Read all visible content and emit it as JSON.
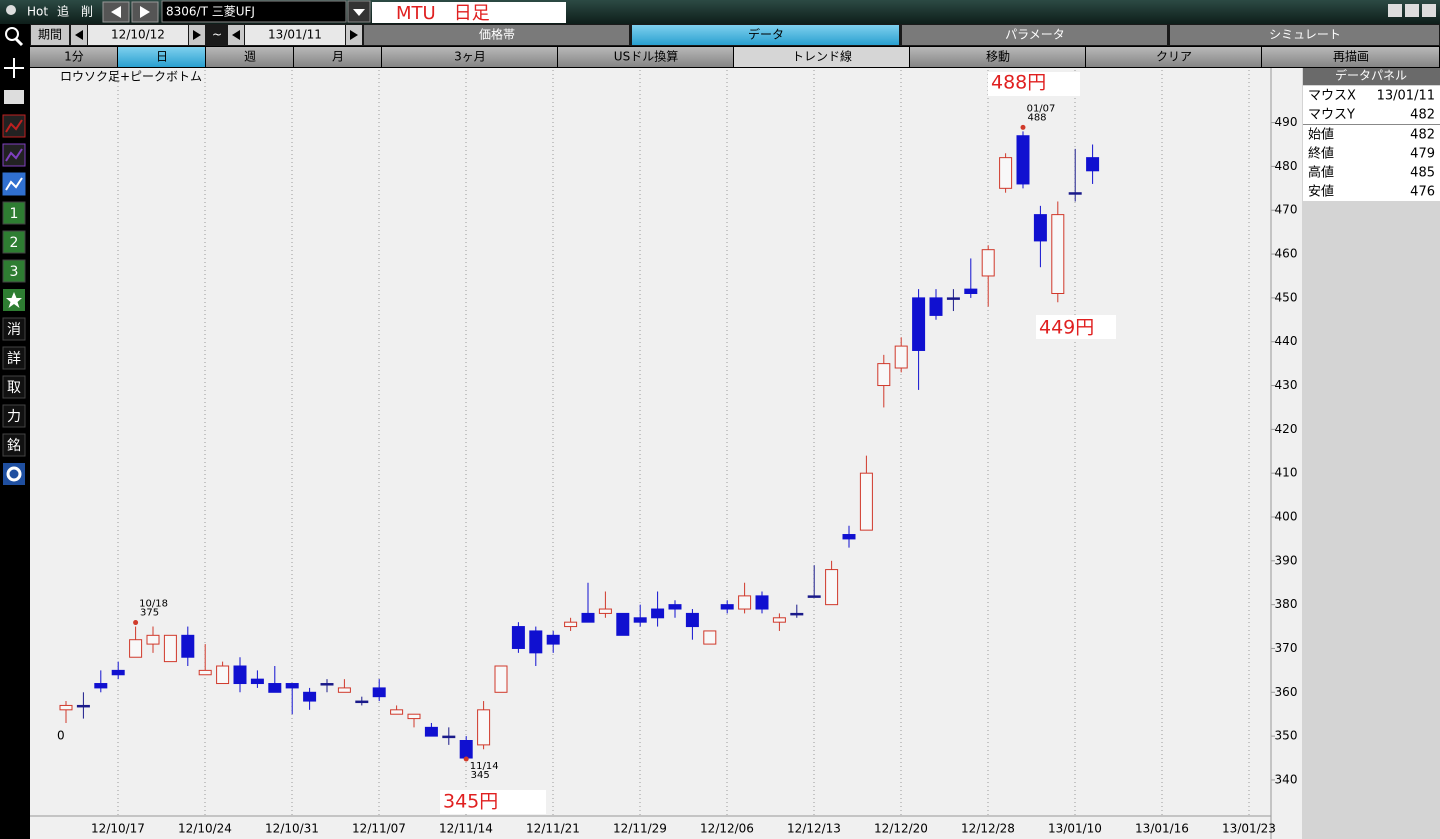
{
  "toolbar": {
    "hot": "Hot",
    "add": "追",
    "delete": "削",
    "symbol": "8306/T 三菱UFJ",
    "memo": "MTU　日足"
  },
  "period": {
    "label": "期間",
    "from": "12/10/12",
    "separator": "~",
    "to": "13/01/11"
  },
  "tabs": [
    "価格帯",
    "データ",
    "パラメータ",
    "シミュレート"
  ],
  "buttons": [
    "1分",
    "日",
    "週",
    "月",
    "3ヶ月",
    "USドル換算",
    "トレンド線",
    "移動",
    "クリア",
    "再描画"
  ],
  "sidebar": [
    "1",
    "2",
    "3",
    "消",
    "詳",
    "取",
    "力",
    "銘"
  ],
  "data_panel": {
    "title": "データパネル",
    "rows": [
      [
        "マウスX",
        "13/01/11"
      ],
      [
        "マウスY",
        482
      ],
      [
        "始値",
        482
      ],
      [
        "終値",
        479
      ],
      [
        "高値",
        485
      ],
      [
        "安値",
        476
      ]
    ]
  },
  "chart_data": {
    "type": "candlestick",
    "title": "ロウソク足+ピークボトム",
    "dates": [
      "12/10/12",
      "12/10/15",
      "12/10/16",
      "12/10/17",
      "12/10/18",
      "12/10/19",
      "12/10/22",
      "12/10/23",
      "12/10/24",
      "12/10/25",
      "12/10/26",
      "12/10/29",
      "12/10/30",
      "12/10/31",
      "12/11/01",
      "12/11/02",
      "12/11/05",
      "12/11/06",
      "12/11/07",
      "12/11/08",
      "12/11/09",
      "12/11/12",
      "12/11/13",
      "12/11/14",
      "12/11/15",
      "12/11/16",
      "12/11/19",
      "12/11/20",
      "12/11/21",
      "12/11/22",
      "12/11/26",
      "12/11/27",
      "12/11/28",
      "12/11/29",
      "12/11/30",
      "12/12/03",
      "12/12/04",
      "12/12/05",
      "12/12/06",
      "12/12/07",
      "12/12/10",
      "12/12/11",
      "12/12/12",
      "12/12/13",
      "12/12/14",
      "12/12/17",
      "12/12/18",
      "12/12/19",
      "12/12/20",
      "12/12/21",
      "12/12/25",
      "12/12/26",
      "12/12/27",
      "12/12/28",
      "13/01/04",
      "13/01/07",
      "13/01/08",
      "13/01/09",
      "13/01/10",
      "13/01/11"
    ],
    "open": [
      356,
      357,
      362,
      365,
      368,
      371,
      367,
      373,
      364,
      362,
      366,
      363,
      362,
      362,
      360,
      362,
      360,
      358,
      361,
      355,
      354,
      352,
      350,
      349,
      348,
      360,
      375,
      374,
      373,
      375,
      378,
      378,
      378,
      377,
      379,
      380,
      378,
      371,
      380,
      379,
      382,
      376,
      378,
      382,
      380,
      396,
      397,
      430,
      434,
      450,
      450,
      450,
      452,
      455,
      475,
      487,
      469,
      451,
      474,
      482
    ],
    "high": [
      358,
      360,
      365,
      367,
      375,
      375,
      373,
      375,
      371,
      367,
      368,
      365,
      366,
      362,
      361,
      363,
      363,
      359,
      363,
      357,
      355,
      353,
      352,
      350,
      358,
      366,
      376,
      375,
      374,
      377,
      385,
      383,
      378,
      380,
      383,
      381,
      379,
      374,
      381,
      385,
      383,
      378,
      380,
      389,
      390,
      398,
      414,
      437,
      441,
      452,
      452,
      452,
      459,
      462,
      483,
      488,
      471,
      472,
      484,
      485
    ],
    "low": [
      353,
      354,
      360,
      363,
      368,
      369,
      367,
      366,
      364,
      362,
      360,
      361,
      360,
      355,
      356,
      360,
      360,
      357,
      358,
      355,
      352,
      350,
      348,
      345,
      347,
      360,
      369,
      366,
      369,
      374,
      376,
      377,
      373,
      375,
      375,
      377,
      372,
      371,
      378,
      378,
      378,
      374,
      377,
      382,
      380,
      393,
      397,
      425,
      433,
      429,
      445,
      447,
      450,
      448,
      474,
      475,
      457,
      449,
      472,
      476
    ],
    "close": [
      357,
      357,
      361,
      364,
      372,
      373,
      373,
      368,
      365,
      366,
      362,
      362,
      360,
      361,
      358,
      362,
      361,
      358,
      359,
      356,
      355,
      350,
      350,
      345,
      356,
      366,
      370,
      369,
      371,
      376,
      376,
      379,
      373,
      376,
      377,
      379,
      375,
      374,
      379,
      382,
      379,
      377,
      378,
      382,
      388,
      395,
      410,
      435,
      439,
      438,
      446,
      450,
      451,
      461,
      482,
      476,
      463,
      469,
      474,
      479
    ],
    "up_color": "#d0382a",
    "down_color": "#1010d0",
    "ylim": [
      332,
      502
    ],
    "yticks": [
      340,
      350,
      360,
      370,
      380,
      390,
      400,
      410,
      420,
      430,
      440,
      450,
      460,
      470,
      480,
      490
    ],
    "xtick_labels": [
      "12/10/17",
      "12/10/24",
      "12/10/31",
      "12/11/07",
      "12/11/14",
      "12/11/21",
      "12/11/29",
      "12/12/06",
      "12/12/13",
      "12/12/20",
      "12/12/28",
      "13/01/10",
      "13/01/16",
      "13/01/23"
    ],
    "grid": "x",
    "peaks": [
      {
        "date": "10/18",
        "value": 375
      },
      {
        "date": "11/14",
        "value": 345
      },
      {
        "date": "01/07",
        "value": 488
      }
    ],
    "annotations": [
      "488円",
      "345円",
      "449円"
    ],
    "left_axis_fragment": "0"
  }
}
